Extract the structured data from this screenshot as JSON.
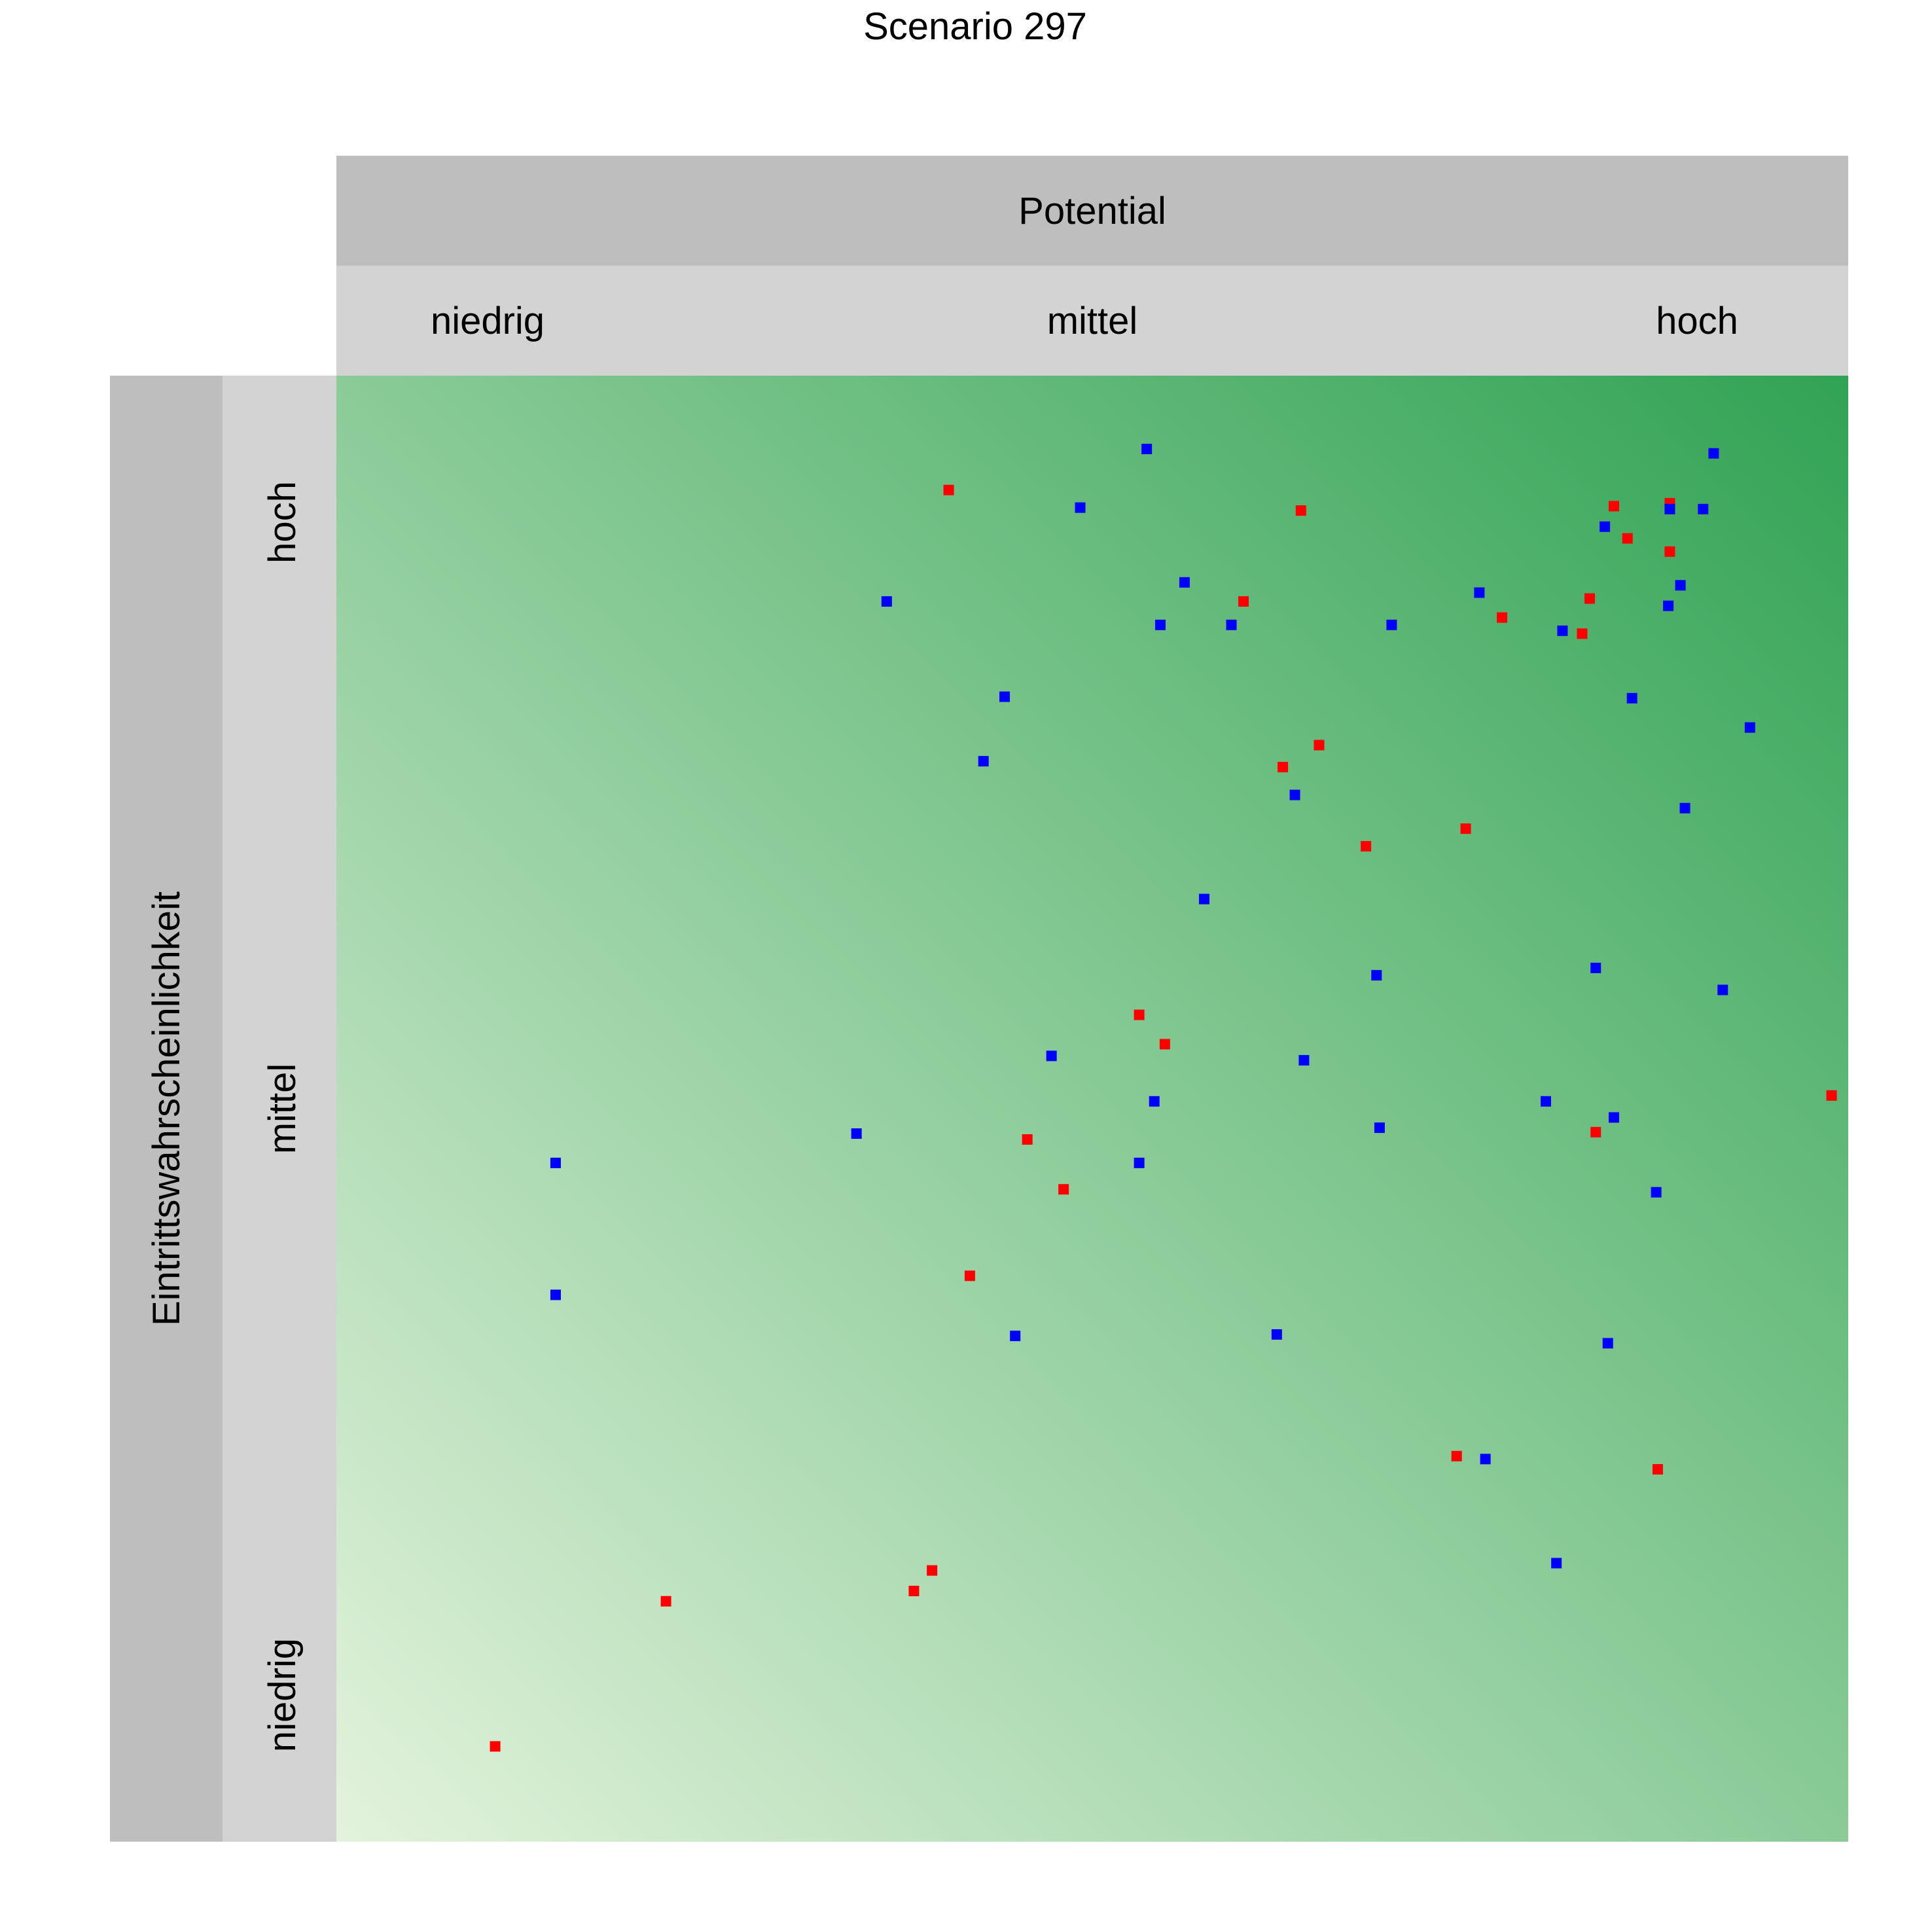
{
  "chart_data": {
    "type": "scatter",
    "title": "Scenario 297",
    "xlabel": "Potential",
    "ylabel": "Eintrittswahrscheinlichkeit",
    "x_categories": [
      "niedrig",
      "mittel",
      "hoch"
    ],
    "y_categories": [
      "niedrig",
      "mittel",
      "hoch"
    ],
    "xlim": [
      0,
      1
    ],
    "ylim": [
      0,
      1
    ],
    "grid": false,
    "background": {
      "type": "gradient",
      "from": "#e3f3dc",
      "to": "#31a354"
    },
    "series": [
      {
        "color": "#ff0000",
        "points": [
          [
            0.405,
            0.922
          ],
          [
            0.638,
            0.908
          ],
          [
            0.845,
            0.911
          ],
          [
            0.882,
            0.913
          ],
          [
            0.854,
            0.889
          ],
          [
            0.882,
            0.88
          ],
          [
            0.6,
            0.846
          ],
          [
            0.771,
            0.835
          ],
          [
            0.829,
            0.848
          ],
          [
            0.824,
            0.824
          ],
          [
            0.65,
            0.748
          ],
          [
            0.626,
            0.733
          ],
          [
            0.747,
            0.691
          ],
          [
            0.681,
            0.679
          ],
          [
            0.531,
            0.564
          ],
          [
            0.548,
            0.544
          ],
          [
            0.989,
            0.509
          ],
          [
            0.457,
            0.479
          ],
          [
            0.833,
            0.484
          ],
          [
            0.481,
            0.445
          ],
          [
            0.419,
            0.386
          ],
          [
            0.741,
            0.263
          ],
          [
            0.874,
            0.254
          ],
          [
            0.394,
            0.185
          ],
          [
            0.382,
            0.171
          ],
          [
            0.218,
            0.164
          ],
          [
            0.105,
            0.065
          ]
        ]
      },
      {
        "color": "#0000ff",
        "points": [
          [
            0.536,
            0.95
          ],
          [
            0.911,
            0.947
          ],
          [
            0.492,
            0.91
          ],
          [
            0.882,
            0.909
          ],
          [
            0.904,
            0.909
          ],
          [
            0.839,
            0.897
          ],
          [
            0.561,
            0.859
          ],
          [
            0.889,
            0.857
          ],
          [
            0.364,
            0.846
          ],
          [
            0.756,
            0.852
          ],
          [
            0.881,
            0.843
          ],
          [
            0.545,
            0.83
          ],
          [
            0.592,
            0.83
          ],
          [
            0.698,
            0.83
          ],
          [
            0.811,
            0.826
          ],
          [
            0.442,
            0.781
          ],
          [
            0.857,
            0.78
          ],
          [
            0.935,
            0.76
          ],
          [
            0.428,
            0.737
          ],
          [
            0.634,
            0.714
          ],
          [
            0.892,
            0.705
          ],
          [
            0.574,
            0.643
          ],
          [
            0.833,
            0.596
          ],
          [
            0.688,
            0.591
          ],
          [
            0.917,
            0.581
          ],
          [
            0.473,
            0.536
          ],
          [
            0.64,
            0.533
          ],
          [
            0.541,
            0.505
          ],
          [
            0.8,
            0.505
          ],
          [
            0.845,
            0.494
          ],
          [
            0.344,
            0.483
          ],
          [
            0.69,
            0.487
          ],
          [
            0.531,
            0.463
          ],
          [
            0.145,
            0.463
          ],
          [
            0.873,
            0.443
          ],
          [
            0.145,
            0.373
          ],
          [
            0.449,
            0.345
          ],
          [
            0.622,
            0.346
          ],
          [
            0.841,
            0.34
          ],
          [
            0.76,
            0.261
          ],
          [
            0.807,
            0.19
          ]
        ]
      }
    ]
  }
}
